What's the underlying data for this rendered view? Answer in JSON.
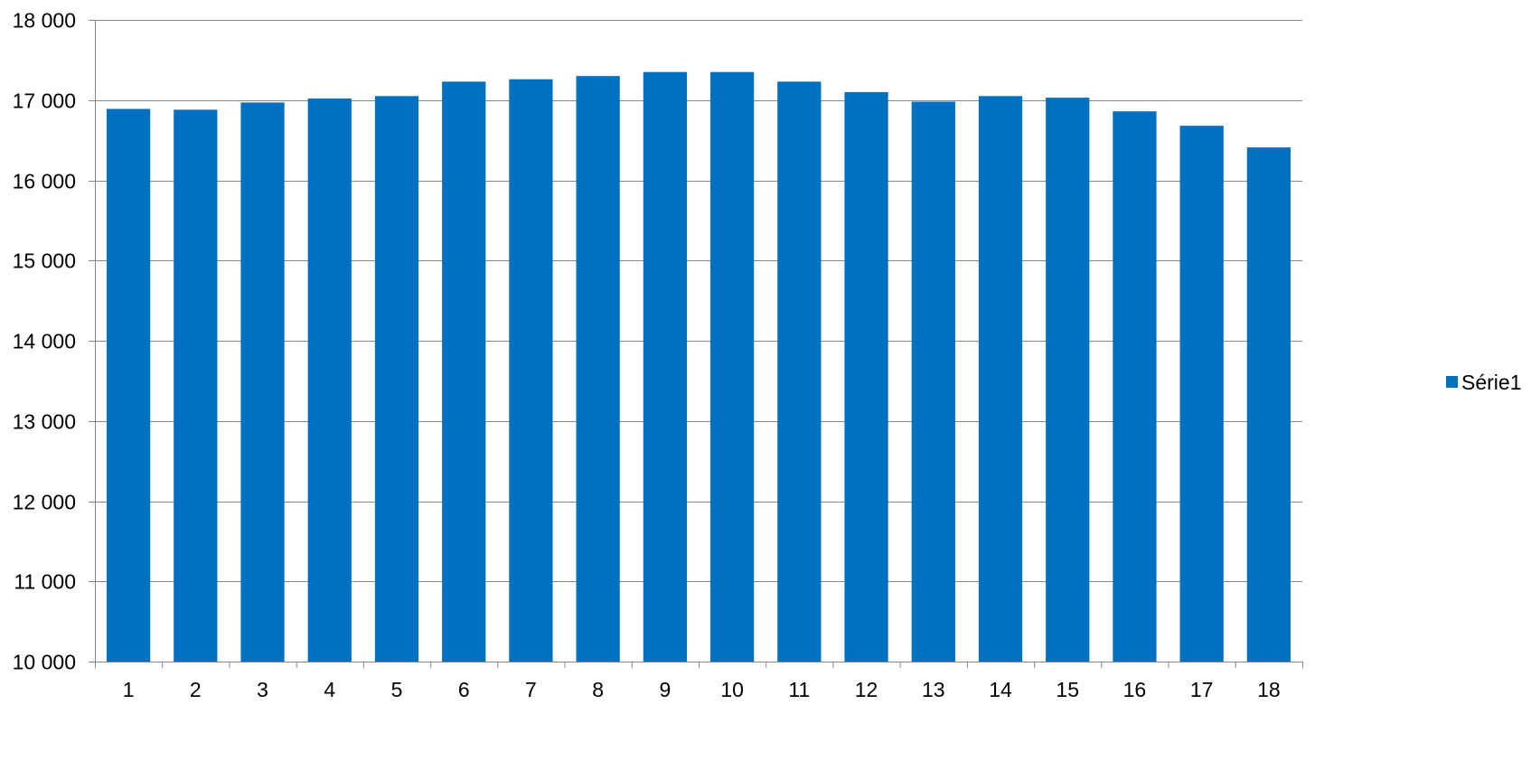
{
  "chart_data": {
    "type": "bar",
    "categories": [
      "1",
      "2",
      "3",
      "4",
      "5",
      "6",
      "7",
      "8",
      "9",
      "10",
      "11",
      "12",
      "13",
      "14",
      "15",
      "16",
      "17",
      "18"
    ],
    "series": [
      {
        "name": "Série1",
        "values": [
          16890,
          16880,
          16970,
          17020,
          17050,
          17230,
          17260,
          17300,
          17350,
          17350,
          17230,
          17100,
          16980,
          17050,
          17030,
          16860,
          16680,
          16410
        ]
      }
    ],
    "ylim": [
      10000,
      18000
    ],
    "ytick_labels": [
      "10 000",
      "11 000",
      "12 000",
      "13 000",
      "14 000",
      "15 000",
      "16 000",
      "17 000",
      "18 000"
    ],
    "ytick_values": [
      10000,
      11000,
      12000,
      13000,
      14000,
      15000,
      16000,
      17000,
      18000
    ],
    "grid": true,
    "legend": "right",
    "colors": {
      "bar": "#0070C0",
      "grid": "#868686",
      "axis": "#868686"
    }
  }
}
